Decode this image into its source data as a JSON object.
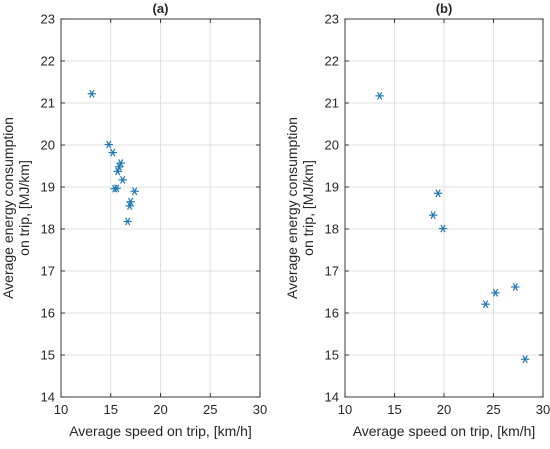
{
  "chart_data": [
    {
      "type": "scatter",
      "title": "(a)",
      "xlabel": "Average speed on trip, [km/h]",
      "ylabel": [
        "Average energy consumption",
        "on trip, [MJ/km]"
      ],
      "xlim": [
        10,
        30
      ],
      "ylim": [
        14,
        23
      ],
      "xticks": [
        10,
        15,
        20,
        25,
        30
      ],
      "yticks": [
        14,
        15,
        16,
        17,
        18,
        19,
        20,
        21,
        22,
        23
      ],
      "grid": true,
      "marker": "asterisk",
      "color": "#1f77b4",
      "points": [
        {
          "x": 13.1,
          "y": 21.22
        },
        {
          "x": 14.8,
          "y": 20.01
        },
        {
          "x": 15.2,
          "y": 19.82
        },
        {
          "x": 15.4,
          "y": 18.96
        },
        {
          "x": 15.6,
          "y": 18.97
        },
        {
          "x": 15.7,
          "y": 19.37
        },
        {
          "x": 15.85,
          "y": 19.48
        },
        {
          "x": 16.0,
          "y": 19.57
        },
        {
          "x": 16.2,
          "y": 19.17
        },
        {
          "x": 16.7,
          "y": 18.18
        },
        {
          "x": 16.9,
          "y": 18.55
        },
        {
          "x": 17.0,
          "y": 18.65
        },
        {
          "x": 17.4,
          "y": 18.9
        }
      ]
    },
    {
      "type": "scatter",
      "title": "(b)",
      "xlabel": "Average speed on trip, [km/h]",
      "ylabel": [
        "Average energy consumption",
        "on trip, [MJ/km]"
      ],
      "xlim": [
        10,
        30
      ],
      "ylim": [
        14,
        23
      ],
      "xticks": [
        10,
        15,
        20,
        25,
        30
      ],
      "yticks": [
        14,
        15,
        16,
        17,
        18,
        19,
        20,
        21,
        22,
        23
      ],
      "grid": true,
      "marker": "asterisk",
      "color": "#1f77b4",
      "points": [
        {
          "x": 13.5,
          "y": 21.17
        },
        {
          "x": 18.9,
          "y": 18.33
        },
        {
          "x": 19.4,
          "y": 18.85
        },
        {
          "x": 19.9,
          "y": 18.01
        },
        {
          "x": 24.2,
          "y": 16.21
        },
        {
          "x": 25.2,
          "y": 16.48
        },
        {
          "x": 27.2,
          "y": 16.62
        },
        {
          "x": 28.2,
          "y": 14.9
        }
      ]
    }
  ]
}
